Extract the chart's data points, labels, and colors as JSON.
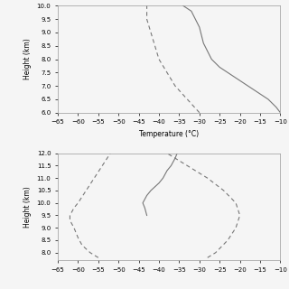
{
  "panel1": {
    "temp_solid": [
      [
        -10,
        6.0
      ],
      [
        -11,
        6.2
      ],
      [
        -13,
        6.5
      ],
      [
        -16,
        6.8
      ],
      [
        -19,
        7.1
      ],
      [
        -22,
        7.4
      ],
      [
        -25,
        7.7
      ],
      [
        -27,
        8.0
      ],
      [
        -28,
        8.3
      ],
      [
        -29,
        8.6
      ],
      [
        -29.5,
        8.9
      ],
      [
        -30,
        9.2
      ],
      [
        -31,
        9.5
      ],
      [
        -32,
        9.8
      ],
      [
        -34,
        10.0
      ]
    ],
    "temp_dashed": [
      [
        -30,
        6.0
      ],
      [
        -33,
        6.5
      ],
      [
        -36,
        7.0
      ],
      [
        -38,
        7.5
      ],
      [
        -40,
        8.0
      ],
      [
        -41,
        8.5
      ],
      [
        -42,
        9.0
      ],
      [
        -43,
        9.5
      ],
      [
        -43,
        10.0
      ]
    ],
    "xlim": [
      -65,
      -10
    ],
    "ylim": [
      6.0,
      10.0
    ],
    "xticks": [
      -65,
      -60,
      -55,
      -50,
      -45,
      -40,
      -35,
      -30,
      -25,
      -20,
      -15,
      -10
    ],
    "yticks": [
      6.0,
      6.5,
      7.0,
      7.5,
      8.0,
      8.5,
      9.0,
      9.5,
      10.0
    ],
    "xlabel": "Temperature (°C)",
    "ylabel": "Height (km)"
  },
  "panel2": {
    "temp_solid": [
      [
        -43,
        9.5
      ],
      [
        -43.5,
        9.8
      ],
      [
        -44,
        10.0
      ],
      [
        -43,
        10.3
      ],
      [
        -42,
        10.5
      ],
      [
        -40,
        10.8
      ],
      [
        -39,
        11.0
      ],
      [
        -38,
        11.3
      ],
      [
        -37,
        11.5
      ],
      [
        -36,
        11.8
      ],
      [
        -35.5,
        12.0
      ]
    ],
    "temp_dashed_left": [
      [
        -55,
        7.8
      ],
      [
        -57,
        8.0
      ],
      [
        -59,
        8.3
      ],
      [
        -60,
        8.6
      ],
      [
        -61,
        9.0
      ],
      [
        -62,
        9.3
      ],
      [
        -62,
        9.5
      ],
      [
        -61,
        9.8
      ],
      [
        -60,
        10.0
      ],
      [
        -58,
        10.5
      ],
      [
        -56,
        11.0
      ],
      [
        -54,
        11.5
      ],
      [
        -52,
        12.0
      ]
    ],
    "temp_dashed_right": [
      [
        -28,
        7.8
      ],
      [
        -26,
        8.0
      ],
      [
        -23,
        8.5
      ],
      [
        -21,
        9.0
      ],
      [
        -20,
        9.5
      ],
      [
        -21,
        10.0
      ],
      [
        -24,
        10.5
      ],
      [
        -28,
        11.0
      ],
      [
        -33,
        11.5
      ],
      [
        -38,
        12.0
      ]
    ],
    "xlim": [
      -65,
      -10
    ],
    "ylim": [
      7.7,
      12.0
    ],
    "xticks": [
      -65,
      -60,
      -55,
      -50,
      -45,
      -40,
      -35,
      -30,
      -25,
      -20,
      -15,
      -10
    ],
    "yticks": [
      8.0,
      8.5,
      9.0,
      9.5,
      10.0,
      10.5,
      11.0,
      11.5,
      12.0
    ],
    "xlabel": "",
    "ylabel": "Height (km)"
  },
  "line_color": "#777777",
  "background": "#f5f5f5"
}
